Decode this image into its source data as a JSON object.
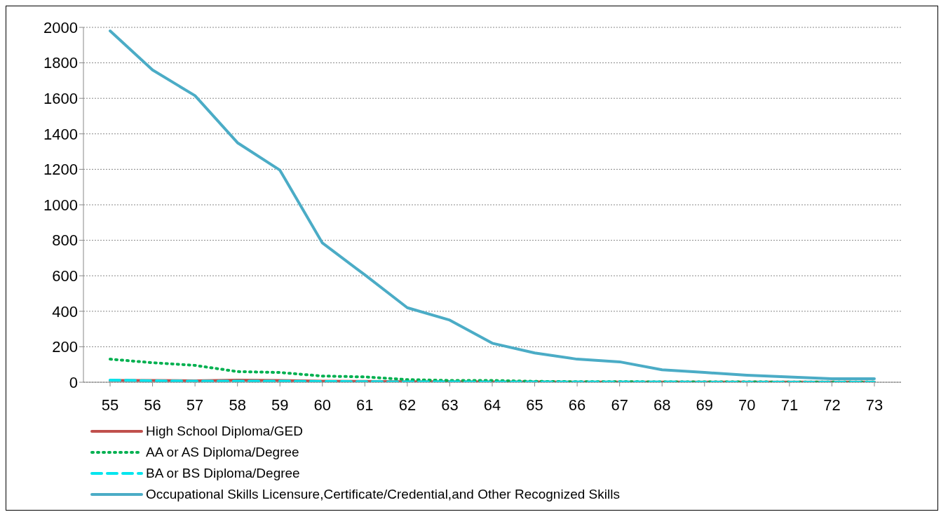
{
  "chart_data": {
    "type": "line",
    "categories": [
      "55",
      "56",
      "57",
      "58",
      "59",
      "60",
      "61",
      "62",
      "63",
      "64",
      "65",
      "66",
      "67",
      "68",
      "69",
      "70",
      "71",
      "72",
      "73"
    ],
    "ylim": [
      0,
      2000
    ],
    "yticks": [
      0,
      200,
      400,
      600,
      800,
      1000,
      1200,
      1400,
      1600,
      1800,
      2000
    ],
    "grid": "y",
    "legend": "bottom",
    "marker": "none",
    "series": [
      {
        "name": "High School Diploma/GED",
        "color": "#c0504d",
        "line_style": "solid",
        "values": [
          10,
          10,
          8,
          12,
          10,
          6,
          5,
          3,
          3,
          2,
          2,
          1,
          1,
          1,
          1,
          1,
          1,
          1,
          1
        ]
      },
      {
        "name": "AA or AS Diploma/Degree",
        "color": "#00b050",
        "line_style": "dotted",
        "values": [
          130,
          110,
          95,
          60,
          55,
          35,
          30,
          15,
          10,
          10,
          5,
          3,
          3,
          2,
          2,
          2,
          1,
          1,
          1
        ]
      },
      {
        "name": "BA or BS Diploma/Degree",
        "color": "#00e5ee",
        "line_style": "dashed",
        "values": [
          12,
          8,
          6,
          6,
          6,
          4,
          3,
          2,
          2,
          1,
          1,
          1,
          1,
          1,
          0,
          0,
          0,
          0,
          0
        ]
      },
      {
        "name": "Occupational Skills Licensure,Certificate/Credential,and Other Recognized Skills",
        "color": "#4bacc6",
        "line_style": "solid",
        "values": [
          1980,
          1760,
          1615,
          1350,
          1195,
          785,
          605,
          420,
          350,
          220,
          165,
          130,
          115,
          70,
          55,
          40,
          30,
          20,
          20
        ]
      }
    ]
  }
}
